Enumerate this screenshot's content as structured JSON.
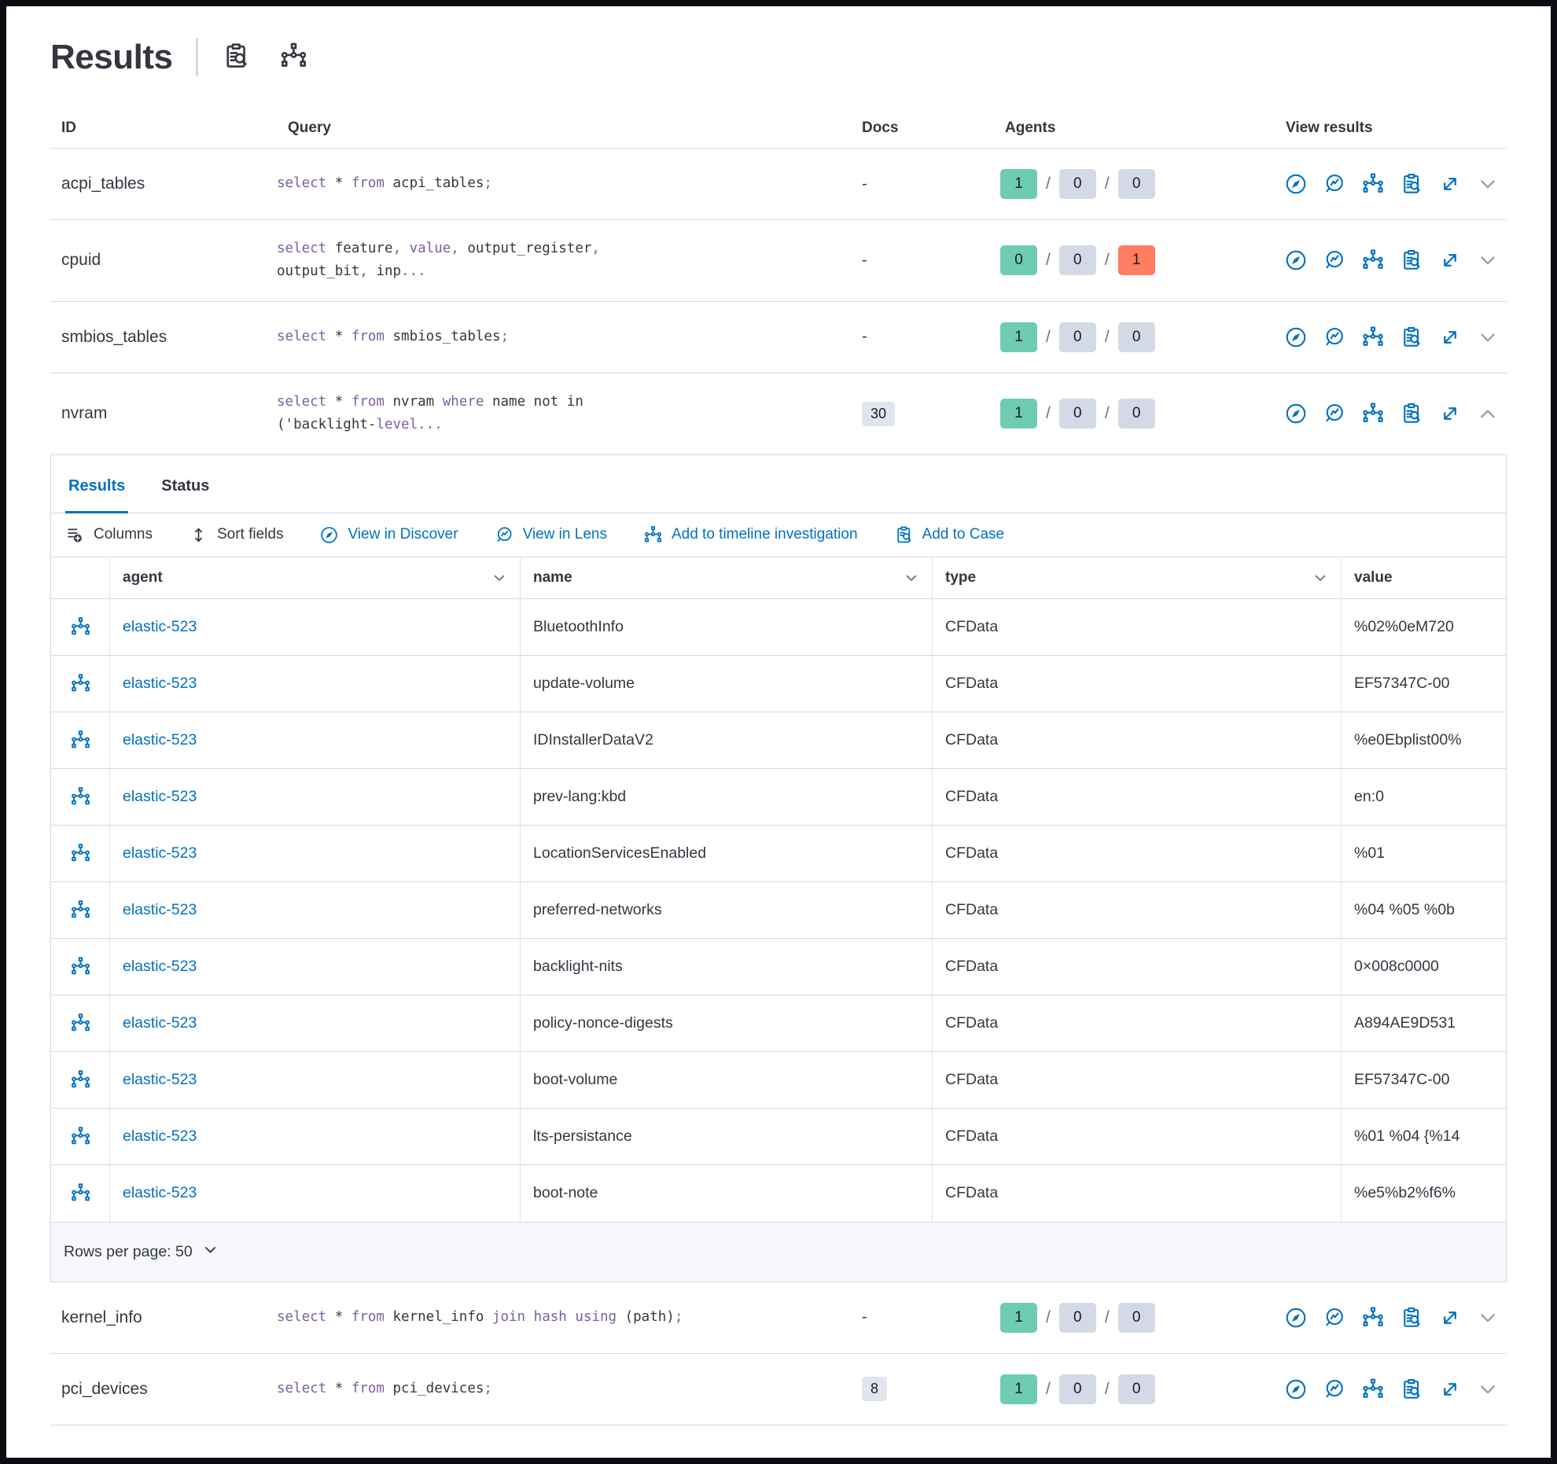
{
  "colors": {
    "accent_blue": "#0071c2",
    "success_green": "#6dccb1",
    "failed_red": "#ff7e62",
    "neutral_badge_gray": "#d3dae6",
    "sql_keyword_purple": "#7c609e",
    "text_dark": "#343741",
    "muted_gray": "#69707d",
    "border_gray": "#d3dae6"
  },
  "page": {
    "title": "Results",
    "title_icons": [
      "inspect-icon",
      "node-tree-icon"
    ]
  },
  "queries_table": {
    "headers": {
      "id": "ID",
      "query": "Query",
      "docs": "Docs",
      "agents": "Agents",
      "view": "View results"
    },
    "view_actions": [
      "discover-icon",
      "lens-icon",
      "node-tree-icon",
      "inspect-icon",
      "expand-icon"
    ],
    "rows": [
      {
        "id": "acpi_tables",
        "query": [
          [
            "select",
            "k"
          ],
          [
            " * ",
            "d"
          ],
          [
            "from",
            "k"
          ],
          [
            " acpi_tables",
            "d"
          ],
          [
            ";",
            "p"
          ]
        ],
        "docs": {
          "text": "-",
          "badge": false
        },
        "agents": [
          1,
          0,
          0
        ],
        "expanded": false,
        "two_line": false
      },
      {
        "id": "cpuid",
        "query": [
          [
            "select",
            "k"
          ],
          [
            " feature",
            "d"
          ],
          [
            ",",
            "p"
          ],
          [
            " ",
            "d"
          ],
          [
            "value",
            "k"
          ],
          [
            ",",
            "p"
          ],
          [
            " output_register",
            "d"
          ],
          [
            ",",
            "p"
          ],
          [
            "\n",
            "d"
          ],
          [
            "output_bit",
            "d"
          ],
          [
            ",",
            "p"
          ],
          [
            " inp",
            "d"
          ],
          [
            "...",
            "p"
          ]
        ],
        "docs": {
          "text": "-",
          "badge": false
        },
        "agents": [
          0,
          0,
          1
        ],
        "expanded": false,
        "two_line": true
      },
      {
        "id": "smbios_tables",
        "query": [
          [
            "select",
            "k"
          ],
          [
            " * ",
            "d"
          ],
          [
            "from",
            "k"
          ],
          [
            " smbios_tables",
            "d"
          ],
          [
            ";",
            "p"
          ]
        ],
        "docs": {
          "text": "-",
          "badge": false
        },
        "agents": [
          1,
          0,
          0
        ],
        "expanded": false,
        "two_line": false
      },
      {
        "id": "nvram",
        "query": [
          [
            "select",
            "k"
          ],
          [
            " * ",
            "d"
          ],
          [
            "from",
            "k"
          ],
          [
            " nvram ",
            "d"
          ],
          [
            "where",
            "k"
          ],
          [
            " name not in",
            "d"
          ],
          [
            "\n",
            "d"
          ],
          [
            "('backlight-",
            "d"
          ],
          [
            "level",
            "k"
          ],
          [
            "...",
            "p"
          ]
        ],
        "docs": {
          "text": "30",
          "badge": true
        },
        "agents": [
          1,
          0,
          0
        ],
        "expanded": true,
        "two_line": true
      },
      {
        "id": "kernel_info",
        "query": [
          [
            "select",
            "k"
          ],
          [
            " * ",
            "d"
          ],
          [
            "from",
            "k"
          ],
          [
            " kernel_info ",
            "d"
          ],
          [
            "join",
            "k"
          ],
          [
            " ",
            "d"
          ],
          [
            "hash",
            "k"
          ],
          [
            " ",
            "d"
          ],
          [
            "using",
            "k"
          ],
          [
            " (path)",
            "d"
          ],
          [
            ";",
            "p"
          ]
        ],
        "docs": {
          "text": "-",
          "badge": false
        },
        "agents": [
          1,
          0,
          0
        ],
        "expanded": false,
        "two_line": false
      },
      {
        "id": "pci_devices",
        "query": [
          [
            "select",
            "k"
          ],
          [
            " * ",
            "d"
          ],
          [
            "from",
            "k"
          ],
          [
            " pci_devices",
            "d"
          ],
          [
            ";",
            "p"
          ]
        ],
        "docs": {
          "text": "8",
          "badge": true
        },
        "agents": [
          1,
          0,
          0
        ],
        "expanded": false,
        "two_line": false
      }
    ]
  },
  "results_panel": {
    "tabs": [
      {
        "label": "Results",
        "active": true
      },
      {
        "label": "Status",
        "active": false
      }
    ],
    "toolbar": [
      {
        "label": "Columns",
        "icon": "columns-icon",
        "link": false
      },
      {
        "label": "Sort fields",
        "icon": "sort-fields-icon",
        "link": false
      },
      {
        "label": "View in Discover",
        "icon": "discover-icon",
        "link": true
      },
      {
        "label": "View in Lens",
        "icon": "lens-icon",
        "link": true
      },
      {
        "label": "Add to timeline investigation",
        "icon": "node-tree-icon",
        "link": true
      },
      {
        "label": "Add to Case",
        "icon": "case-icon",
        "link": true
      }
    ],
    "grid": {
      "row_icon": "node-tree-icon",
      "columns": [
        {
          "label": "agent",
          "sortable": true
        },
        {
          "label": "name",
          "sortable": true
        },
        {
          "label": "type",
          "sortable": true
        },
        {
          "label": "value",
          "sortable": false
        }
      ],
      "rows": [
        {
          "agent": "elastic-523",
          "name": "BluetoothInfo",
          "type": "CFData",
          "value": "%02%0eM720"
        },
        {
          "agent": "elastic-523",
          "name": "update-volume",
          "type": "CFData",
          "value": "EF57347C-00"
        },
        {
          "agent": "elastic-523",
          "name": "IDInstallerDataV2",
          "type": "CFData",
          "value": "%e0Ebplist00%"
        },
        {
          "agent": "elastic-523",
          "name": "prev-lang:kbd",
          "type": "CFData",
          "value": "en:0"
        },
        {
          "agent": "elastic-523",
          "name": "LocationServicesEnabled",
          "type": "CFData",
          "value": "%01"
        },
        {
          "agent": "elastic-523",
          "name": "preferred-networks",
          "type": "CFData",
          "value": "%04 %05 %0b"
        },
        {
          "agent": "elastic-523",
          "name": "backlight-nits",
          "type": "CFData",
          "value": "0×008c0000"
        },
        {
          "agent": "elastic-523",
          "name": "policy-nonce-digests",
          "type": "CFData",
          "value": "A894AE9D531"
        },
        {
          "agent": "elastic-523",
          "name": "boot-volume",
          "type": "CFData",
          "value": "EF57347C-00"
        },
        {
          "agent": "elastic-523",
          "name": "lts-persistance",
          "type": "CFData",
          "value": "%01 %04 {%14"
        },
        {
          "agent": "elastic-523",
          "name": "boot-note",
          "type": "CFData",
          "value": "%e5%b2%f6%"
        }
      ]
    },
    "footer": {
      "rows_per_page_label": "Rows per page: 50"
    }
  }
}
